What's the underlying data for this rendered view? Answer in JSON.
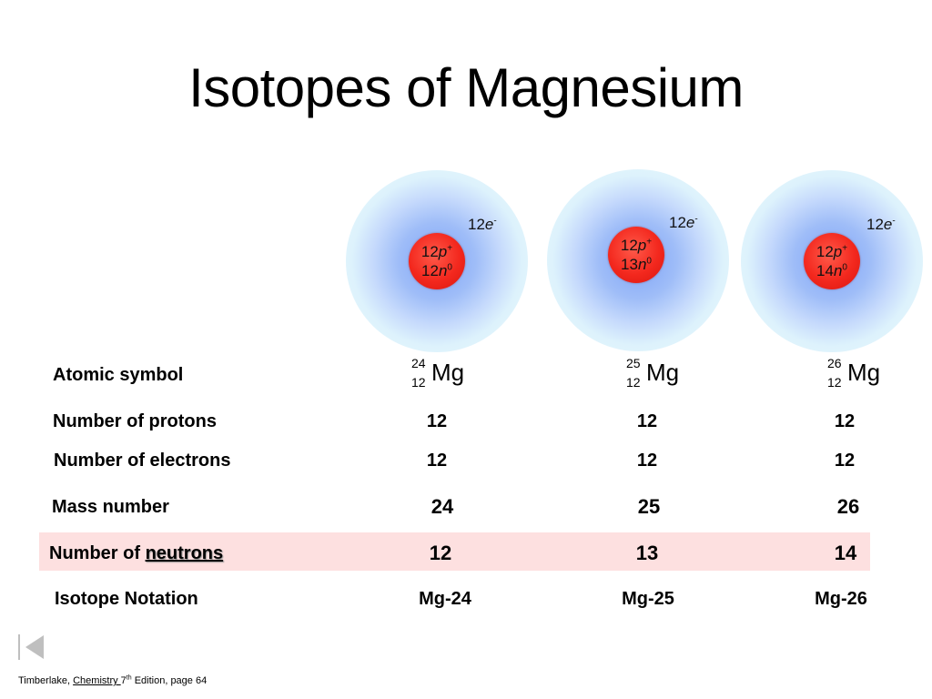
{
  "title": "Isotopes of Magnesium",
  "isotopes": [
    {
      "electrons": "12",
      "protons": "12",
      "neutrons": "12",
      "mass_number": "24",
      "atomic_number": "12",
      "symbol": "Mg",
      "notation": "Mg-24"
    },
    {
      "electrons": "12",
      "protons": "12",
      "neutrons": "13",
      "mass_number": "25",
      "atomic_number": "12",
      "symbol": "Mg",
      "notation": "Mg-25"
    },
    {
      "electrons": "12",
      "protons": "12",
      "neutrons": "14",
      "mass_number": "26",
      "atomic_number": "12",
      "symbol": "Mg",
      "notation": "Mg-26"
    }
  ],
  "particle_symbols": {
    "electron": "e",
    "electron_charge": "-",
    "proton": "p",
    "proton_charge": "+",
    "neutron": "n",
    "neutron_charge": "0"
  },
  "rows": {
    "atomic_symbol": "Atomic symbol",
    "protons": "Number of protons",
    "electrons": "Number of electrons",
    "mass_number": "Mass number",
    "neutrons_prefix": "Number of ",
    "neutrons_word": "neutrons",
    "notation": "Isotope Notation"
  },
  "footer": {
    "author": "Timberlake, ",
    "book": "Chemistry ",
    "edition_num": "7",
    "edition_sup": "th",
    "rest": " Edition, page 64"
  },
  "colors": {
    "nucleus": "#f3281e",
    "highlight": "#fde0e0",
    "halo_inner": "#7fa4f6",
    "halo_outer": "#e7f8fd"
  },
  "icons": {
    "nav": "first-slide-icon"
  }
}
